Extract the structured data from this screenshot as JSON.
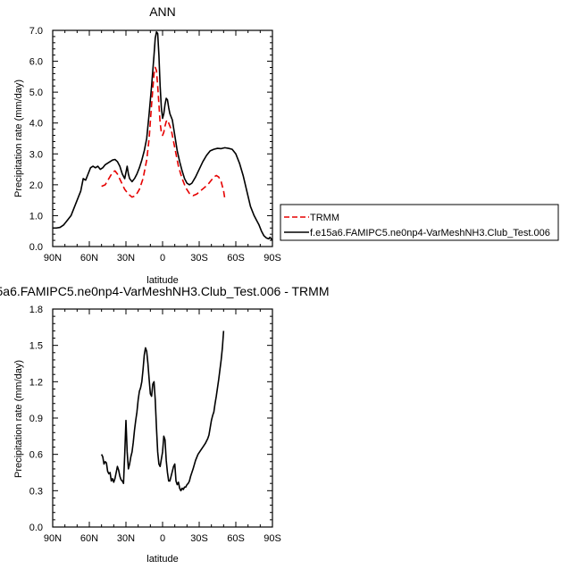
{
  "chart_data": [
    {
      "type": "line",
      "title": "ANN",
      "xlabel": "latitude",
      "ylabel": "Precipitation rate (mm/day)",
      "xlim": [
        90,
        -90
      ],
      "ylim": [
        0,
        7
      ],
      "x_ticks": [
        90,
        60,
        30,
        0,
        -30,
        -60,
        -90
      ],
      "x_tick_labels": [
        "90N",
        "60N",
        "30N",
        "0",
        "30S",
        "60S",
        "90S"
      ],
      "y_ticks": [
        0,
        1,
        2,
        3,
        4,
        5,
        6,
        7
      ],
      "y_tick_labels": [
        "0.0",
        "1.0",
        "2.0",
        "3.0",
        "4.0",
        "5.0",
        "6.0",
        "7.0"
      ],
      "legend_position": "right",
      "series": [
        {
          "name": "TRMM",
          "color": "#e60000",
          "dashed": true,
          "points": [
            [
              50,
              1.95
            ],
            [
              47,
              2.0
            ],
            [
              44,
              2.2
            ],
            [
              41,
              2.4
            ],
            [
              39,
              2.45
            ],
            [
              37,
              2.35
            ],
            [
              34,
              2.1
            ],
            [
              31,
              1.85
            ],
            [
              28,
              1.7
            ],
            [
              25,
              1.6
            ],
            [
              22,
              1.65
            ],
            [
              19,
              1.85
            ],
            [
              16,
              2.2
            ],
            [
              13,
              2.8
            ],
            [
              11,
              3.5
            ],
            [
              9,
              4.6
            ],
            [
              7,
              5.6
            ],
            [
              6,
              5.8
            ],
            [
              5,
              5.7
            ],
            [
              4,
              5.2
            ],
            [
              3,
              4.6
            ],
            [
              2,
              4.0
            ],
            [
              1,
              3.7
            ],
            [
              0,
              3.6
            ],
            [
              -1,
              3.7
            ],
            [
              -2,
              3.9
            ],
            [
              -3,
              4.05
            ],
            [
              -4,
              4.1
            ],
            [
              -5,
              4.0
            ],
            [
              -7,
              3.8
            ],
            [
              -9,
              3.4
            ],
            [
              -11,
              3.0
            ],
            [
              -13,
              2.6
            ],
            [
              -16,
              2.2
            ],
            [
              -19,
              1.9
            ],
            [
              -22,
              1.72
            ],
            [
              -25,
              1.65
            ],
            [
              -28,
              1.7
            ],
            [
              -31,
              1.8
            ],
            [
              -34,
              1.9
            ],
            [
              -37,
              2.0
            ],
            [
              -40,
              2.15
            ],
            [
              -42,
              2.25
            ],
            [
              -44,
              2.3
            ],
            [
              -46,
              2.25
            ],
            [
              -48,
              2.1
            ],
            [
              -50,
              1.8
            ],
            [
              -51,
              1.55
            ]
          ]
        },
        {
          "name": "f.e15a6.FAMIPC5.ne0np4-VarMeshNH3.Club_Test.006",
          "color": "#000000",
          "dashed": false,
          "points": [
            [
              90,
              0.6
            ],
            [
              87,
              0.6
            ],
            [
              84,
              0.62
            ],
            [
              81,
              0.7
            ],
            [
              78,
              0.85
            ],
            [
              75,
              1.0
            ],
            [
              72,
              1.3
            ],
            [
              69,
              1.6
            ],
            [
              67,
              1.8
            ],
            [
              65,
              2.2
            ],
            [
              63,
              2.15
            ],
            [
              61,
              2.35
            ],
            [
              59,
              2.55
            ],
            [
              57,
              2.6
            ],
            [
              55,
              2.55
            ],
            [
              53,
              2.6
            ],
            [
              51,
              2.5
            ],
            [
              49,
              2.55
            ],
            [
              47,
              2.65
            ],
            [
              45,
              2.7
            ],
            [
              43,
              2.75
            ],
            [
              41,
              2.8
            ],
            [
              39,
              2.82
            ],
            [
              37,
              2.75
            ],
            [
              35,
              2.6
            ],
            [
              33,
              2.35
            ],
            [
              31,
              2.2
            ],
            [
              29,
              2.6
            ],
            [
              28,
              2.35
            ],
            [
              27,
              2.2
            ],
            [
              25,
              2.1
            ],
            [
              23,
              2.2
            ],
            [
              21,
              2.35
            ],
            [
              19,
              2.55
            ],
            [
              17,
              2.8
            ],
            [
              15,
              3.1
            ],
            [
              13,
              3.5
            ],
            [
              11,
              4.3
            ],
            [
              9,
              5.2
            ],
            [
              7,
              6.2
            ],
            [
              6,
              6.75
            ],
            [
              5,
              6.95
            ],
            [
              4,
              6.9
            ],
            [
              3,
              6.2
            ],
            [
              2,
              5.2
            ],
            [
              1,
              4.5
            ],
            [
              0,
              4.15
            ],
            [
              -1,
              4.3
            ],
            [
              -2,
              4.6
            ],
            [
              -3,
              4.8
            ],
            [
              -4,
              4.75
            ],
            [
              -5,
              4.5
            ],
            [
              -6,
              4.3
            ],
            [
              -8,
              4.1
            ],
            [
              -10,
              3.6
            ],
            [
              -12,
              3.1
            ],
            [
              -14,
              2.75
            ],
            [
              -16,
              2.45
            ],
            [
              -18,
              2.2
            ],
            [
              -20,
              2.05
            ],
            [
              -22,
              2.0
            ],
            [
              -24,
              2.05
            ],
            [
              -27,
              2.25
            ],
            [
              -30,
              2.5
            ],
            [
              -33,
              2.75
            ],
            [
              -36,
              2.95
            ],
            [
              -39,
              3.1
            ],
            [
              -42,
              3.15
            ],
            [
              -45,
              3.18
            ],
            [
              -48,
              3.17
            ],
            [
              -51,
              3.2
            ],
            [
              -54,
              3.18
            ],
            [
              -57,
              3.15
            ],
            [
              -60,
              3.0
            ],
            [
              -63,
              2.7
            ],
            [
              -66,
              2.3
            ],
            [
              -69,
              1.8
            ],
            [
              -72,
              1.3
            ],
            [
              -75,
              1.0
            ],
            [
              -77,
              0.85
            ],
            [
              -79,
              0.7
            ],
            [
              -81,
              0.5
            ],
            [
              -83,
              0.35
            ],
            [
              -85,
              0.28
            ],
            [
              -87,
              0.25
            ],
            [
              -88,
              0.3
            ],
            [
              -90,
              0.2
            ]
          ]
        }
      ]
    },
    {
      "type": "line",
      "title": "5a6.FAMIPC5.ne0np4-VarMeshNH3.Club_Test.006 - TRMM",
      "xlabel": "latitude",
      "ylabel": "Precipitation rate (mm/day)",
      "xlim": [
        90,
        -90
      ],
      "ylim": [
        0,
        1.8
      ],
      "x_ticks": [
        90,
        60,
        30,
        0,
        -30,
        -60,
        -90
      ],
      "x_tick_labels": [
        "90N",
        "60N",
        "30N",
        "0",
        "30S",
        "60S",
        "90S"
      ],
      "y_ticks": [
        0,
        0.3,
        0.6,
        0.9,
        1.2,
        1.5,
        1.8
      ],
      "y_tick_labels": [
        "0.0",
        "0.3",
        "0.6",
        "0.9",
        "1.2",
        "1.5",
        "1.8"
      ],
      "series": [
        {
          "name": "",
          "color": "#000000",
          "dashed": false,
          "points": [
            [
              50,
              0.6
            ],
            [
              49,
              0.58
            ],
            [
              48,
              0.52
            ],
            [
              47,
              0.54
            ],
            [
              46,
              0.53
            ],
            [
              45,
              0.46
            ],
            [
              44,
              0.44
            ],
            [
              43,
              0.45
            ],
            [
              42,
              0.38
            ],
            [
              41,
              0.4
            ],
            [
              40,
              0.37
            ],
            [
              39,
              0.4
            ],
            [
              38,
              0.45
            ],
            [
              37,
              0.5
            ],
            [
              36,
              0.47
            ],
            [
              35,
              0.42
            ],
            [
              34,
              0.39
            ],
            [
              33,
              0.38
            ],
            [
              32,
              0.36
            ],
            [
              31,
              0.6
            ],
            [
              30,
              0.88
            ],
            [
              29,
              0.62
            ],
            [
              28,
              0.48
            ],
            [
              27,
              0.52
            ],
            [
              26,
              0.58
            ],
            [
              25,
              0.62
            ],
            [
              24,
              0.7
            ],
            [
              23,
              0.8
            ],
            [
              22,
              0.88
            ],
            [
              21,
              0.95
            ],
            [
              20,
              1.05
            ],
            [
              19,
              1.12
            ],
            [
              18,
              1.15
            ],
            [
              17,
              1.2
            ],
            [
              16,
              1.3
            ],
            [
              15,
              1.42
            ],
            [
              14,
              1.48
            ],
            [
              13,
              1.45
            ],
            [
              12,
              1.35
            ],
            [
              11,
              1.22
            ],
            [
              10,
              1.1
            ],
            [
              9,
              1.08
            ],
            [
              8,
              1.18
            ],
            [
              7,
              1.2
            ],
            [
              6,
              1.05
            ],
            [
              5,
              0.82
            ],
            [
              4,
              0.62
            ],
            [
              3,
              0.52
            ],
            [
              2,
              0.5
            ],
            [
              1,
              0.56
            ],
            [
              0,
              0.62
            ],
            [
              -1,
              0.75
            ],
            [
              -2,
              0.72
            ],
            [
              -3,
              0.55
            ],
            [
              -4,
              0.45
            ],
            [
              -5,
              0.38
            ],
            [
              -6,
              0.38
            ],
            [
              -7,
              0.42
            ],
            [
              -8,
              0.46
            ],
            [
              -9,
              0.5
            ],
            [
              -10,
              0.52
            ],
            [
              -11,
              0.38
            ],
            [
              -12,
              0.35
            ],
            [
              -13,
              0.37
            ],
            [
              -14,
              0.32
            ],
            [
              -15,
              0.3
            ],
            [
              -16,
              0.32
            ],
            [
              -17,
              0.31
            ],
            [
              -18,
              0.33
            ],
            [
              -19,
              0.33
            ],
            [
              -20,
              0.35
            ],
            [
              -21,
              0.36
            ],
            [
              -22,
              0.38
            ],
            [
              -23,
              0.42
            ],
            [
              -25,
              0.48
            ],
            [
              -27,
              0.55
            ],
            [
              -29,
              0.6
            ],
            [
              -31,
              0.63
            ],
            [
              -33,
              0.66
            ],
            [
              -35,
              0.69
            ],
            [
              -37,
              0.73
            ],
            [
              -38,
              0.76
            ],
            [
              -39,
              0.82
            ],
            [
              -40,
              0.88
            ],
            [
              -41,
              0.92
            ],
            [
              -42,
              0.95
            ],
            [
              -43,
              1.02
            ],
            [
              -44,
              1.08
            ],
            [
              -45,
              1.15
            ],
            [
              -46,
              1.22
            ],
            [
              -47,
              1.3
            ],
            [
              -48,
              1.38
            ],
            [
              -49,
              1.48
            ],
            [
              -50,
              1.62
            ]
          ]
        }
      ]
    }
  ]
}
